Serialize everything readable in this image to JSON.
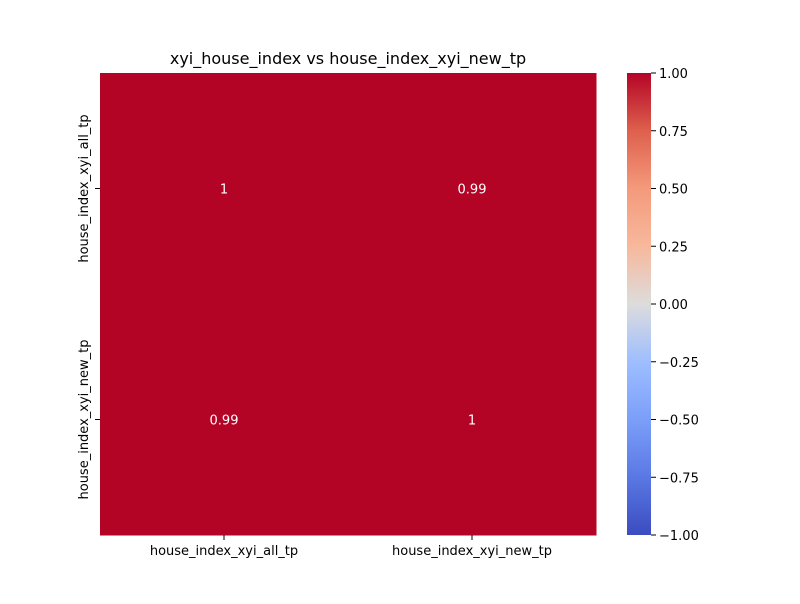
{
  "chart_data": {
    "type": "heatmap",
    "title": "xyi_house_index vs house_index_xyi_new_tp",
    "x_categories": [
      "house_index_xyi_all_tp",
      "house_index_xyi_new_tp"
    ],
    "y_categories": [
      "house_index_xyi_all_tp",
      "house_index_xyi_new_tp"
    ],
    "values": [
      [
        1.0,
        0.99
      ],
      [
        0.99,
        1.0
      ]
    ],
    "annotations": [
      [
        "1",
        "0.99"
      ],
      [
        "0.99",
        "1"
      ]
    ],
    "colorbar": {
      "vmin": -1.0,
      "vmax": 1.0,
      "colormap": "coolwarm",
      "ticks": [
        1.0,
        0.75,
        0.5,
        0.25,
        0.0,
        -0.25,
        -0.5,
        -0.75,
        -1.0
      ],
      "tick_labels": [
        "1.00",
        "0.75",
        "0.50",
        "0.25",
        "0.00",
        "−0.25",
        "−0.50",
        "−0.75",
        "−1.00"
      ]
    },
    "cell_color": "#b40426",
    "annotation_color": "#ffffff"
  }
}
